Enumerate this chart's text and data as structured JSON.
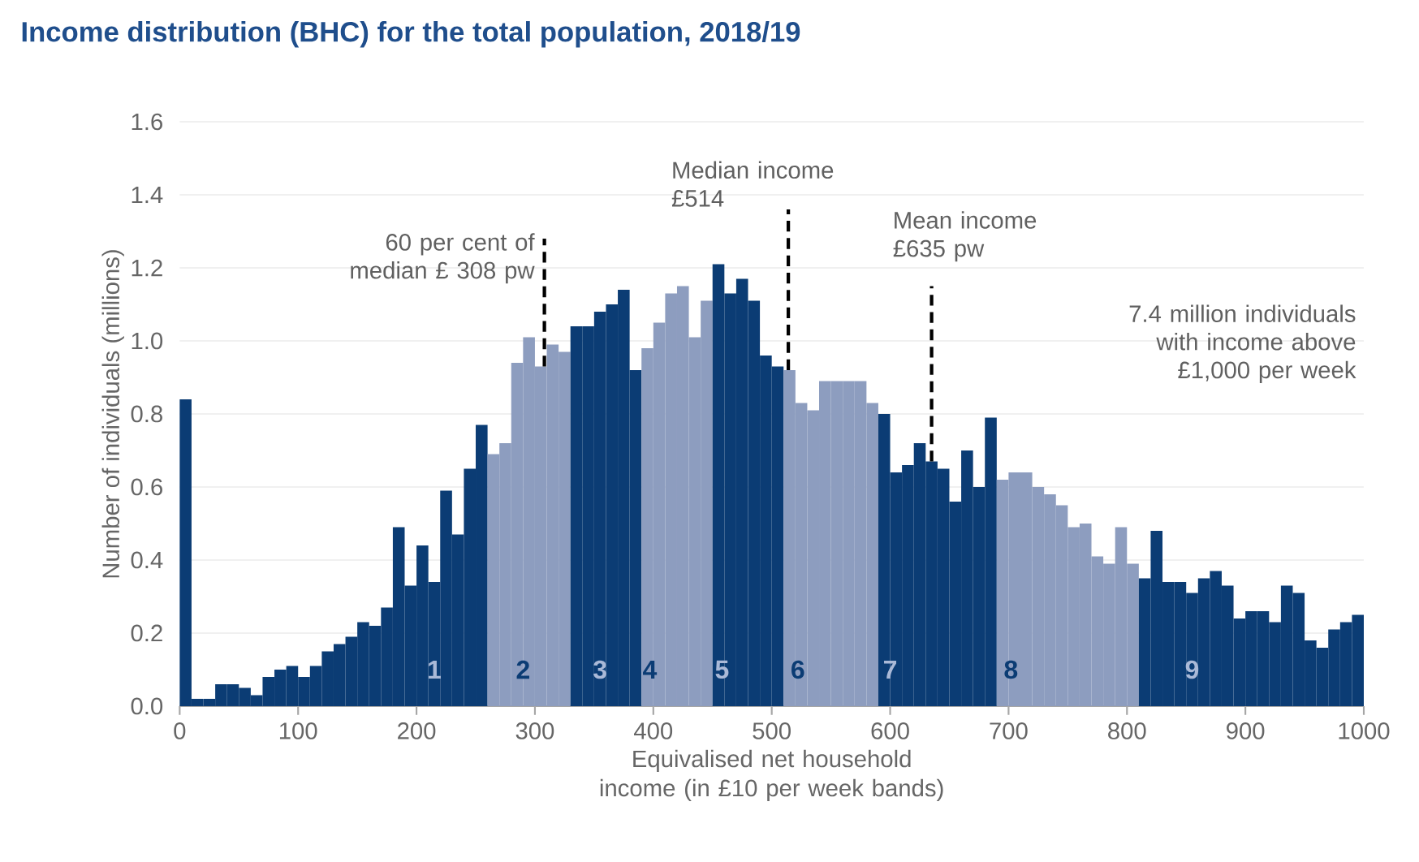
{
  "chart_data": {
    "type": "histogram",
    "title": "Income distribution (BHC) for the total population, 2018/19",
    "xlabel": "Equivalised net household income (in £10 per week bands)",
    "ylabel": "Number of individuals (millions)",
    "bins": [
      0,
      10,
      20,
      30,
      40,
      50,
      60,
      70,
      80,
      90,
      100,
      110,
      120,
      130,
      140,
      150,
      160,
      170,
      180,
      190,
      200,
      210,
      220,
      230,
      240,
      250,
      260,
      270,
      280,
      290,
      300,
      310,
      320,
      330,
      340,
      350,
      360,
      370,
      380,
      390,
      400,
      410,
      420,
      430,
      440,
      450,
      460,
      470,
      480,
      490,
      500,
      510,
      520,
      530,
      540,
      550,
      560,
      570,
      580,
      590,
      600,
      610,
      620,
      630,
      640,
      650,
      660,
      670,
      680,
      690,
      700,
      710,
      720,
      730,
      740,
      750,
      760,
      770,
      780,
      790,
      800,
      810,
      820,
      830,
      840,
      850,
      860,
      870,
      880,
      890,
      900,
      910,
      920,
      930,
      940,
      950,
      960,
      970,
      980,
      990,
      1000
    ],
    "values": [
      0.84,
      0.02,
      0.02,
      0.06,
      0.06,
      0.05,
      0.03,
      0.08,
      0.1,
      0.11,
      0.08,
      0.11,
      0.15,
      0.17,
      0.19,
      0.23,
      0.22,
      0.27,
      0.49,
      0.33,
      0.44,
      0.34,
      0.59,
      0.47,
      0.65,
      0.77,
      0.69,
      0.72,
      0.94,
      1.01,
      0.93,
      0.99,
      0.97,
      1.04,
      1.04,
      1.08,
      1.1,
      1.14,
      0.92,
      0.98,
      1.05,
      1.13,
      1.15,
      1.01,
      1.11,
      1.21,
      1.13,
      1.17,
      1.11,
      0.96,
      0.93,
      0.92,
      0.83,
      0.81,
      0.89,
      0.89,
      0.89,
      0.89,
      0.83,
      0.8,
      0.64,
      0.66,
      0.72,
      0.67,
      0.65,
      0.56,
      0.7,
      0.6,
      0.79,
      0.62,
      0.64,
      0.64,
      0.6,
      0.58,
      0.55,
      0.49,
      0.5,
      0.41,
      0.39,
      0.49,
      0.39,
      0.35,
      0.48,
      0.34,
      0.34,
      0.31,
      0.35,
      0.37,
      0.33,
      0.24,
      0.26,
      0.26,
      0.23,
      0.33,
      0.31,
      0.18,
      0.16,
      0.21,
      0.23,
      0.25
    ],
    "colors": [
      "#0b3c74",
      "#0b3c74",
      "#0b3c74",
      "#0b3c74",
      "#0b3c74",
      "#0b3c74",
      "#0b3c74",
      "#0b3c74",
      "#0b3c74",
      "#0b3c74",
      "#0b3c74",
      "#0b3c74",
      "#0b3c74",
      "#0b3c74",
      "#0b3c74",
      "#0b3c74",
      "#0b3c74",
      "#0b3c74",
      "#0b3c74",
      "#0b3c74",
      "#0b3c74",
      "#0b3c74",
      "#0b3c74",
      "#0b3c74",
      "#0b3c74",
      "#0b3c74",
      "#8d9dbf",
      "#8d9dbf",
      "#8d9dbf",
      "#8d9dbf",
      "#8d9dbf",
      "#8d9dbf",
      "#8d9dbf",
      "#0b3c74",
      "#0b3c74",
      "#0b3c74",
      "#0b3c74",
      "#0b3c74",
      "#0b3c74",
      "#8d9dbf",
      "#8d9dbf",
      "#8d9dbf",
      "#8d9dbf",
      "#8d9dbf",
      "#8d9dbf",
      "#0b3c74",
      "#0b3c74",
      "#0b3c74",
      "#0b3c74",
      "#0b3c74",
      "#0b3c74",
      "#8d9dbf",
      "#8d9dbf",
      "#8d9dbf",
      "#8d9dbf",
      "#8d9dbf",
      "#8d9dbf",
      "#8d9dbf",
      "#8d9dbf",
      "#0b3c74",
      "#0b3c74",
      "#0b3c74",
      "#0b3c74",
      "#0b3c74",
      "#0b3c74",
      "#0b3c74",
      "#0b3c74",
      "#0b3c74",
      "#0b3c74",
      "#8d9dbf",
      "#8d9dbf",
      "#8d9dbf",
      "#8d9dbf",
      "#8d9dbf",
      "#8d9dbf",
      "#8d9dbf",
      "#8d9dbf",
      "#8d9dbf",
      "#8d9dbf",
      "#8d9dbf",
      "#8d9dbf",
      "#0b3c74",
      "#0b3c74",
      "#0b3c74",
      "#0b3c74",
      "#0b3c74",
      "#0b3c74",
      "#0b3c74",
      "#0b3c74",
      "#0b3c74",
      "#0b3c74",
      "#0b3c74",
      "#0b3c74",
      "#0b3c74",
      "#0b3c74",
      "#0b3c74",
      "#0b3c74",
      "#0b3c74",
      "#0b3c74",
      "#0b3c74"
    ],
    "xlim": [
      0,
      1000
    ],
    "xticks": [
      0,
      100,
      200,
      300,
      400,
      500,
      600,
      700,
      800,
      900,
      1000
    ],
    "ylim": [
      0,
      1.6
    ],
    "yticks": [
      {
        "value": 0,
        "label": "0.0"
      },
      {
        "value": 0.2,
        "label": "0.2"
      },
      {
        "value": 0.4,
        "label": "0.4"
      },
      {
        "value": 0.6,
        "label": "0.6"
      },
      {
        "value": 0.8,
        "label": "0.8"
      },
      {
        "value": 1.0,
        "label": "1.0"
      },
      {
        "value": 1.2,
        "label": "1.2"
      },
      {
        "value": 1.4,
        "label": "1.4"
      },
      {
        "value": 1.6,
        "label": "1.6"
      }
    ],
    "grid": "y",
    "ref_lines": [
      {
        "axis": "x",
        "value": 308,
        "label": "60 per cent of median £ 308 pw",
        "line_style": "dashed",
        "color": "#000000"
      },
      {
        "axis": "x",
        "value": 514,
        "label": "Median income £514",
        "line_style": "dashed",
        "color": "#000000"
      },
      {
        "axis": "x",
        "value": 635,
        "label": "Mean income £635 pw",
        "line_style": "dashed",
        "color": "#000000"
      }
    ],
    "annotations": [
      {
        "text": "1",
        "x": 215,
        "y": 0.1
      },
      {
        "text": "2",
        "x": 290,
        "y": 0.1
      },
      {
        "text": "3",
        "x": 355,
        "y": 0.1
      },
      {
        "text": "4",
        "x": 397,
        "y": 0.1
      },
      {
        "text": "5",
        "x": 458,
        "y": 0.1
      },
      {
        "text": "6",
        "x": 522,
        "y": 0.1
      },
      {
        "text": "7",
        "x": 600,
        "y": 0.1
      },
      {
        "text": "8",
        "x": 702,
        "y": 0.1
      },
      {
        "text": "9",
        "x": 855,
        "y": 0.1
      },
      "7.4 million individuals with income above £1,000 per week"
    ]
  }
}
